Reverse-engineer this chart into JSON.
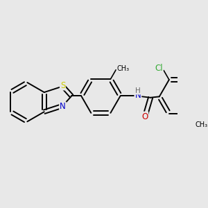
{
  "background_color": "#e8e8e8",
  "bond_color": "#000000",
  "S_color": "#cccc00",
  "N_color": "#0000cc",
  "O_color": "#cc0000",
  "Cl_color": "#33aa33",
  "H_color": "#666666",
  "bond_width": 1.4,
  "figsize": [
    3.0,
    3.0
  ],
  "dpi": 100,
  "xlim": [
    -4.5,
    4.5
  ],
  "ylim": [
    -3.0,
    3.0
  ]
}
